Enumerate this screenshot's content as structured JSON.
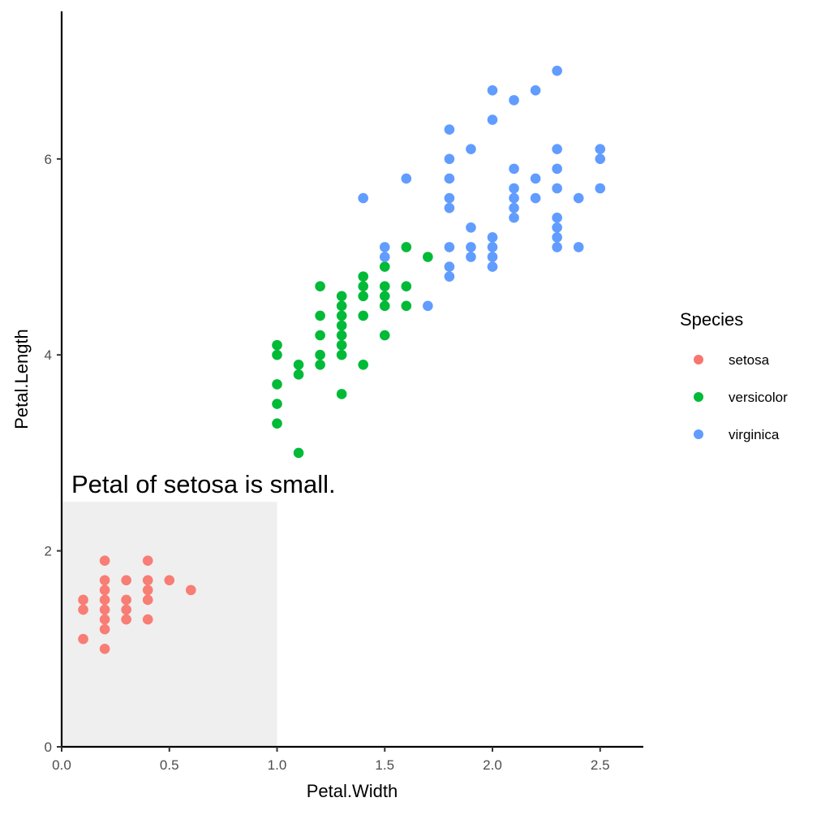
{
  "chart_data": {
    "type": "scatter",
    "title": "",
    "xlabel": "Petal.Width",
    "ylabel": "Petal.Length",
    "xlim": [
      0,
      2.7
    ],
    "ylim": [
      0,
      7.5
    ],
    "x_ticks": [
      0.0,
      0.5,
      1.0,
      1.5,
      2.0,
      2.5
    ],
    "x_tick_labels": [
      "0.0",
      "0.5",
      "1.0",
      "1.5",
      "2.0",
      "2.5"
    ],
    "y_ticks": [
      0,
      2,
      4,
      6
    ],
    "y_tick_labels": [
      "0",
      "2",
      "4",
      "6"
    ],
    "grid": false,
    "legend": {
      "title": "Species",
      "position": "right"
    },
    "annotation": {
      "text": "Petal of setosa is small.",
      "x": 0.05,
      "y": 2.6,
      "rect": {
        "xmin": 0,
        "xmax": 1.0,
        "ymin": 0,
        "ymax": 2.5,
        "fill": "#efefef"
      }
    },
    "series": [
      {
        "name": "setosa",
        "color": "#F8766D",
        "points": [
          [
            0.1,
            1.5
          ],
          [
            0.1,
            1.4
          ],
          [
            0.1,
            1.1
          ],
          [
            0.2,
            1.9
          ],
          [
            0.2,
            1.7
          ],
          [
            0.2,
            1.6
          ],
          [
            0.2,
            1.5
          ],
          [
            0.2,
            1.4
          ],
          [
            0.2,
            1.3
          ],
          [
            0.2,
            1.2
          ],
          [
            0.2,
            1.0
          ],
          [
            0.3,
            1.7
          ],
          [
            0.3,
            1.5
          ],
          [
            0.3,
            1.4
          ],
          [
            0.3,
            1.3
          ],
          [
            0.4,
            1.9
          ],
          [
            0.4,
            1.7
          ],
          [
            0.4,
            1.6
          ],
          [
            0.4,
            1.5
          ],
          [
            0.4,
            1.3
          ],
          [
            0.5,
            1.7
          ],
          [
            0.6,
            1.6
          ]
        ]
      },
      {
        "name": "versicolor",
        "color": "#00BA38",
        "points": [
          [
            1.0,
            4.1
          ],
          [
            1.0,
            4.0
          ],
          [
            1.0,
            3.7
          ],
          [
            1.0,
            3.5
          ],
          [
            1.0,
            3.3
          ],
          [
            1.1,
            3.9
          ],
          [
            1.1,
            3.8
          ],
          [
            1.1,
            3.0
          ],
          [
            1.2,
            4.7
          ],
          [
            1.2,
            4.4
          ],
          [
            1.2,
            4.2
          ],
          [
            1.2,
            4.0
          ],
          [
            1.2,
            3.9
          ],
          [
            1.3,
            4.6
          ],
          [
            1.3,
            4.5
          ],
          [
            1.3,
            4.4
          ],
          [
            1.3,
            4.3
          ],
          [
            1.3,
            4.2
          ],
          [
            1.3,
            4.1
          ],
          [
            1.3,
            4.0
          ],
          [
            1.3,
            3.6
          ],
          [
            1.4,
            4.8
          ],
          [
            1.4,
            4.7
          ],
          [
            1.4,
            4.6
          ],
          [
            1.4,
            4.4
          ],
          [
            1.4,
            3.9
          ],
          [
            1.5,
            4.9
          ],
          [
            1.5,
            4.7
          ],
          [
            1.5,
            4.6
          ],
          [
            1.5,
            4.5
          ],
          [
            1.5,
            4.2
          ],
          [
            1.6,
            5.1
          ],
          [
            1.6,
            4.7
          ],
          [
            1.6,
            4.5
          ],
          [
            1.7,
            5.0
          ]
        ]
      },
      {
        "name": "virginica",
        "color": "#619CFF",
        "points": [
          [
            1.4,
            5.6
          ],
          [
            1.5,
            5.1
          ],
          [
            1.5,
            5.0
          ],
          [
            1.6,
            5.8
          ],
          [
            1.7,
            4.5
          ],
          [
            1.8,
            6.3
          ],
          [
            1.8,
            6.0
          ],
          [
            1.8,
            5.8
          ],
          [
            1.8,
            5.6
          ],
          [
            1.8,
            5.5
          ],
          [
            1.8,
            5.1
          ],
          [
            1.8,
            4.9
          ],
          [
            1.8,
            4.8
          ],
          [
            1.9,
            6.1
          ],
          [
            1.9,
            5.3
          ],
          [
            1.9,
            5.1
          ],
          [
            1.9,
            5.0
          ],
          [
            2.0,
            6.7
          ],
          [
            2.0,
            6.4
          ],
          [
            2.0,
            5.2
          ],
          [
            2.0,
            5.1
          ],
          [
            2.0,
            5.0
          ],
          [
            2.0,
            4.9
          ],
          [
            2.1,
            6.6
          ],
          [
            2.1,
            5.9
          ],
          [
            2.1,
            5.7
          ],
          [
            2.1,
            5.6
          ],
          [
            2.1,
            5.5
          ],
          [
            2.1,
            5.4
          ],
          [
            2.2,
            6.7
          ],
          [
            2.2,
            5.8
          ],
          [
            2.2,
            5.6
          ],
          [
            2.3,
            6.9
          ],
          [
            2.3,
            6.1
          ],
          [
            2.3,
            5.9
          ],
          [
            2.3,
            5.7
          ],
          [
            2.3,
            5.4
          ],
          [
            2.3,
            5.3
          ],
          [
            2.3,
            5.2
          ],
          [
            2.3,
            5.1
          ],
          [
            2.4,
            5.6
          ],
          [
            2.4,
            5.1
          ],
          [
            2.5,
            6.1
          ],
          [
            2.5,
            6.0
          ],
          [
            2.5,
            5.7
          ]
        ]
      }
    ]
  }
}
